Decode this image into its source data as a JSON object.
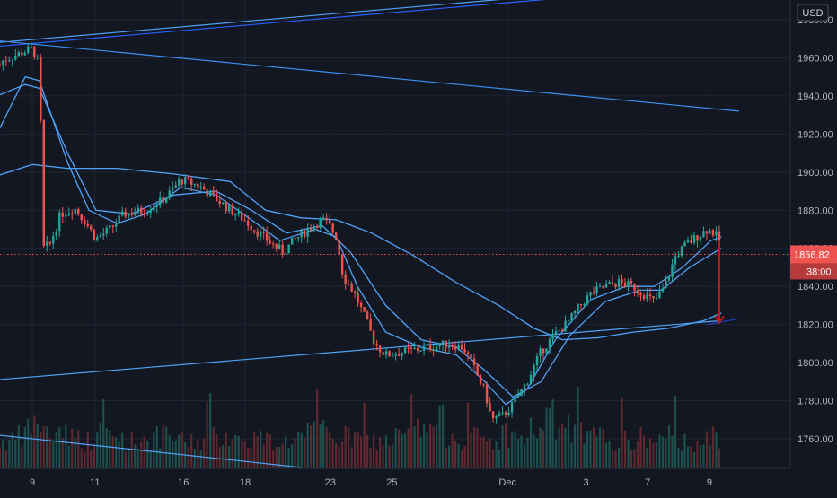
{
  "currency": "USD",
  "chart_data": {
    "type": "candlestick",
    "title": "",
    "xlabel": "",
    "ylabel": "",
    "currency_label": "USD",
    "ylim": [
      1745,
      1998
    ],
    "y_ticks": [
      1760,
      1780,
      1800,
      1820,
      1840,
      1860,
      1880,
      1900,
      1920,
      1940,
      1960,
      1980
    ],
    "y_tick_labels": [
      "1760.00",
      "1780.00",
      "1800.00",
      "1820.00",
      "1840.00",
      "1860.00",
      "1880.00",
      "1900.00",
      "1920.00",
      "1940.00",
      "1960.00",
      "1980.00"
    ],
    "x_ticks": [
      {
        "label": "9",
        "t": 0.0
      },
      {
        "label": "11",
        "t": 0.0887
      },
      {
        "label": "16",
        "t": 0.2138
      },
      {
        "label": "18",
        "t": 0.3011
      },
      {
        "label": "23",
        "t": 0.4215
      },
      {
        "label": "25",
        "t": 0.5088
      },
      {
        "label": "Dec",
        "t": 0.6724
      },
      {
        "label": "3",
        "t": 0.7834
      },
      {
        "label": "7",
        "t": 0.8707
      },
      {
        "label": "9",
        "t": 0.958
      }
    ],
    "last_price": 1856.82,
    "last_price_label": "1856.82",
    "countdown_label": "38:00",
    "grid": true,
    "price_path": [
      [
        -0.05,
        1950
      ],
      [
        -0.045,
        1958
      ],
      [
        -0.02,
        1962
      ],
      [
        0.0,
        1965
      ],
      [
        0.01,
        1956
      ],
      [
        0.013,
        1905
      ],
      [
        0.016,
        1860
      ],
      [
        0.025,
        1862
      ],
      [
        0.04,
        1878
      ],
      [
        0.06,
        1881
      ],
      [
        0.075,
        1874
      ],
      [
        0.09,
        1865
      ],
      [
        0.11,
        1870
      ],
      [
        0.13,
        1878
      ],
      [
        0.16,
        1880
      ],
      [
        0.19,
        1887
      ],
      [
        0.21,
        1896
      ],
      [
        0.235,
        1893
      ],
      [
        0.26,
        1886
      ],
      [
        0.28,
        1880
      ],
      [
        0.3,
        1875
      ],
      [
        0.32,
        1868
      ],
      [
        0.34,
        1862
      ],
      [
        0.355,
        1858
      ],
      [
        0.37,
        1864
      ],
      [
        0.39,
        1870
      ],
      [
        0.41,
        1875
      ],
      [
        0.42,
        1872
      ],
      [
        0.43,
        1866
      ],
      [
        0.44,
        1845
      ],
      [
        0.455,
        1837
      ],
      [
        0.47,
        1824
      ],
      [
        0.485,
        1810
      ],
      [
        0.5,
        1804
      ],
      [
        0.53,
        1806
      ],
      [
        0.56,
        1808
      ],
      [
        0.59,
        1810
      ],
      [
        0.61,
        1808
      ],
      [
        0.625,
        1797
      ],
      [
        0.64,
        1785
      ],
      [
        0.65,
        1770
      ],
      [
        0.665,
        1772
      ],
      [
        0.68,
        1778
      ],
      [
        0.7,
        1790
      ],
      [
        0.72,
        1806
      ],
      [
        0.74,
        1815
      ],
      [
        0.76,
        1822
      ],
      [
        0.775,
        1830
      ],
      [
        0.79,
        1836
      ],
      [
        0.81,
        1840
      ],
      [
        0.83,
        1842
      ],
      [
        0.85,
        1840
      ],
      [
        0.865,
        1836
      ],
      [
        0.88,
        1832
      ],
      [
        0.895,
        1840
      ],
      [
        0.91,
        1856
      ],
      [
        0.925,
        1862
      ],
      [
        0.94,
        1866
      ],
      [
        0.955,
        1870
      ],
      [
        0.965,
        1868
      ],
      [
        0.972,
        1864
      ]
    ],
    "volume_profile": [
      0.3,
      0.35,
      0.55,
      0.4,
      0.45,
      0.35,
      0.3,
      0.4,
      0.35,
      0.3,
      0.35,
      0.35,
      0.35,
      0.3,
      0.3,
      0.35,
      0.4,
      0.3,
      0.35,
      0.3,
      0.3,
      0.35,
      0.4,
      0.45,
      0.35,
      0.35,
      0.3,
      0.3,
      0.35,
      0.4,
      0.45,
      0.55,
      0.4,
      0.35,
      0.35,
      0.3,
      0.4,
      0.35,
      0.45,
      0.6,
      0.5,
      0.4,
      0.35,
      0.35,
      0.3,
      0.3,
      0.35,
      0.3,
      0.35,
      0.3,
      0.3,
      0.35
    ],
    "ma_lines": [
      {
        "points": [
          [
            -0.05,
            1920
          ],
          [
            -0.01,
            1950
          ],
          [
            0.01,
            1948
          ],
          [
            0.05,
            1905
          ],
          [
            0.08,
            1880
          ],
          [
            0.12,
            1873
          ],
          [
            0.16,
            1878
          ],
          [
            0.21,
            1892
          ],
          [
            0.26,
            1888
          ],
          [
            0.31,
            1875
          ],
          [
            0.35,
            1864
          ],
          [
            0.4,
            1870
          ],
          [
            0.43,
            1866
          ],
          [
            0.46,
            1840
          ],
          [
            0.5,
            1816
          ],
          [
            0.55,
            1808
          ],
          [
            0.6,
            1804
          ],
          [
            0.64,
            1790
          ],
          [
            0.67,
            1778
          ],
          [
            0.7,
            1786
          ],
          [
            0.74,
            1812
          ],
          [
            0.79,
            1833
          ],
          [
            0.84,
            1840
          ],
          [
            0.88,
            1840
          ],
          [
            0.92,
            1850
          ],
          [
            0.96,
            1864
          ],
          [
            0.975,
            1866
          ]
        ]
      },
      {
        "points": [
          [
            -0.05,
            1940
          ],
          [
            -0.01,
            1946
          ],
          [
            0.01,
            1944
          ],
          [
            0.05,
            1910
          ],
          [
            0.09,
            1880
          ],
          [
            0.14,
            1878
          ],
          [
            0.2,
            1888
          ],
          [
            0.26,
            1890
          ],
          [
            0.31,
            1880
          ],
          [
            0.36,
            1868
          ],
          [
            0.41,
            1872
          ],
          [
            0.45,
            1858
          ],
          [
            0.5,
            1830
          ],
          [
            0.55,
            1812
          ],
          [
            0.6,
            1808
          ],
          [
            0.64,
            1796
          ],
          [
            0.68,
            1782
          ],
          [
            0.72,
            1790
          ],
          [
            0.76,
            1814
          ],
          [
            0.81,
            1832
          ],
          [
            0.86,
            1838
          ],
          [
            0.89,
            1838
          ],
          [
            0.93,
            1850
          ],
          [
            0.975,
            1860
          ]
        ]
      },
      {
        "points": [
          [
            -0.05,
            1898
          ],
          [
            0.0,
            1904
          ],
          [
            0.05,
            1902
          ],
          [
            0.12,
            1902
          ],
          [
            0.2,
            1899
          ],
          [
            0.28,
            1895
          ],
          [
            0.33,
            1880
          ],
          [
            0.38,
            1876
          ],
          [
            0.43,
            1875
          ],
          [
            0.48,
            1868
          ],
          [
            0.54,
            1856
          ],
          [
            0.6,
            1842
          ],
          [
            0.66,
            1830
          ],
          [
            0.71,
            1818
          ],
          [
            0.75,
            1812
          ],
          [
            0.8,
            1813
          ],
          [
            0.85,
            1816
          ],
          [
            0.9,
            1818
          ],
          [
            0.95,
            1822
          ],
          [
            0.975,
            1826
          ]
        ]
      }
    ],
    "trend_lines": [
      {
        "points": [
          [
            -0.05,
            1966
          ],
          [
            0.8,
            1993
          ]
        ],
        "color": "#2962ff"
      },
      {
        "points": [
          [
            -0.05,
            1968
          ],
          [
            0.8,
            1995
          ]
        ],
        "color": "#4fa3f7"
      },
      {
        "points": [
          [
            -0.05,
            1969
          ],
          [
            1.0,
            1932
          ]
        ],
        "color": "#3d8ff0"
      },
      {
        "points": [
          [
            -0.05,
            1791
          ],
          [
            0.975,
            1822
          ]
        ],
        "color": "#4fa3f7"
      },
      {
        "points": [
          [
            -0.05,
            1762
          ],
          [
            0.38,
            1745
          ]
        ],
        "color": "#4fa3f7"
      },
      {
        "points": [
          [
            0.955,
            1820
          ],
          [
            1.0,
            1823
          ]
        ],
        "color": "#1e3fbf"
      }
    ],
    "arrow": {
      "from": [
        0.972,
        1864
      ],
      "to": [
        0.972,
        1821
      ],
      "color": "#b71c1c"
    }
  }
}
